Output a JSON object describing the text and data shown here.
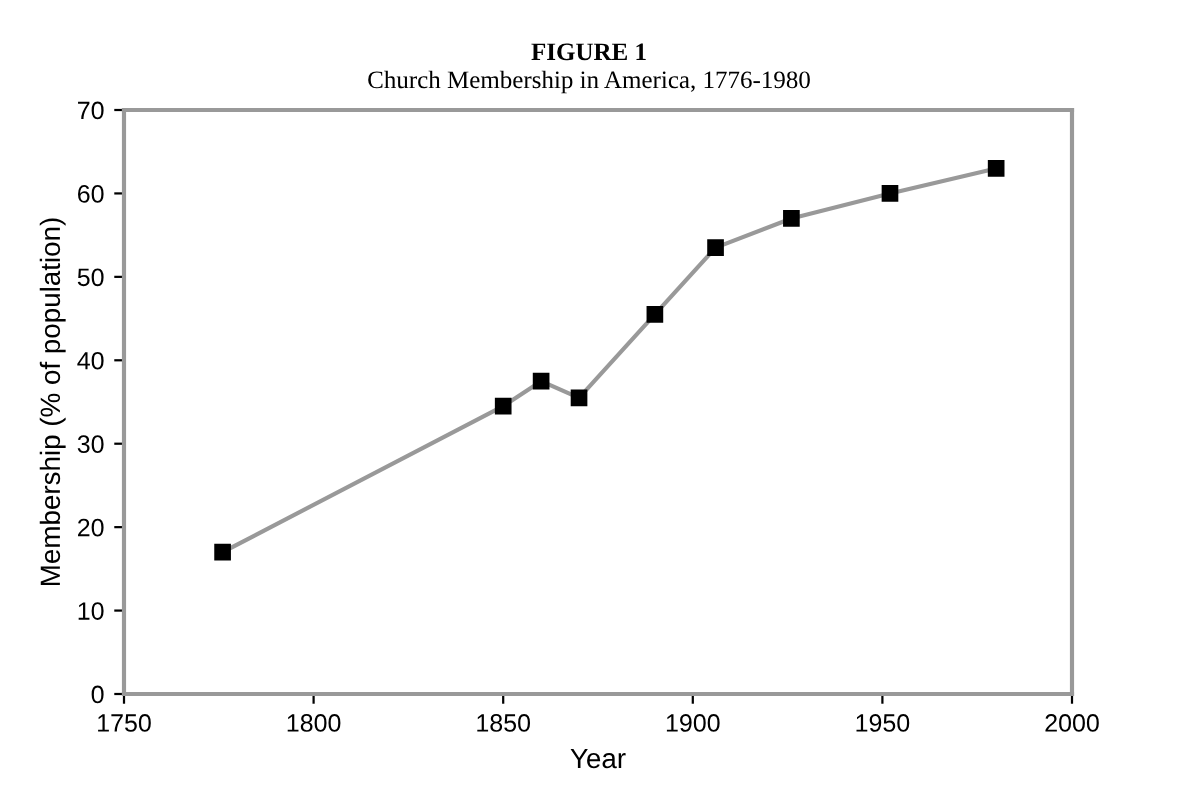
{
  "chart_data": {
    "type": "line",
    "title": "FIGURE 1",
    "subtitle": "Church Membership in America, 1776-1980",
    "xlabel": "Year",
    "ylabel": "Membership (% of population)",
    "x": [
      1776,
      1850,
      1860,
      1870,
      1890,
      1906,
      1926,
      1952,
      1980
    ],
    "series": [
      {
        "color": "#999999",
        "values": [
          17,
          34.5,
          37.5,
          35.5,
          45.5,
          53.5,
          57,
          60,
          63
        ]
      }
    ],
    "marker": "square",
    "line_style": "solid",
    "grid": false,
    "legend": false,
    "xlim": [
      1750,
      2000
    ],
    "xticks": [
      1750,
      1800,
      1850,
      1900,
      1950,
      2000
    ],
    "ylim": [
      0,
      70
    ],
    "yticks": [
      0,
      10,
      20,
      30,
      40,
      50,
      60,
      70
    ]
  }
}
